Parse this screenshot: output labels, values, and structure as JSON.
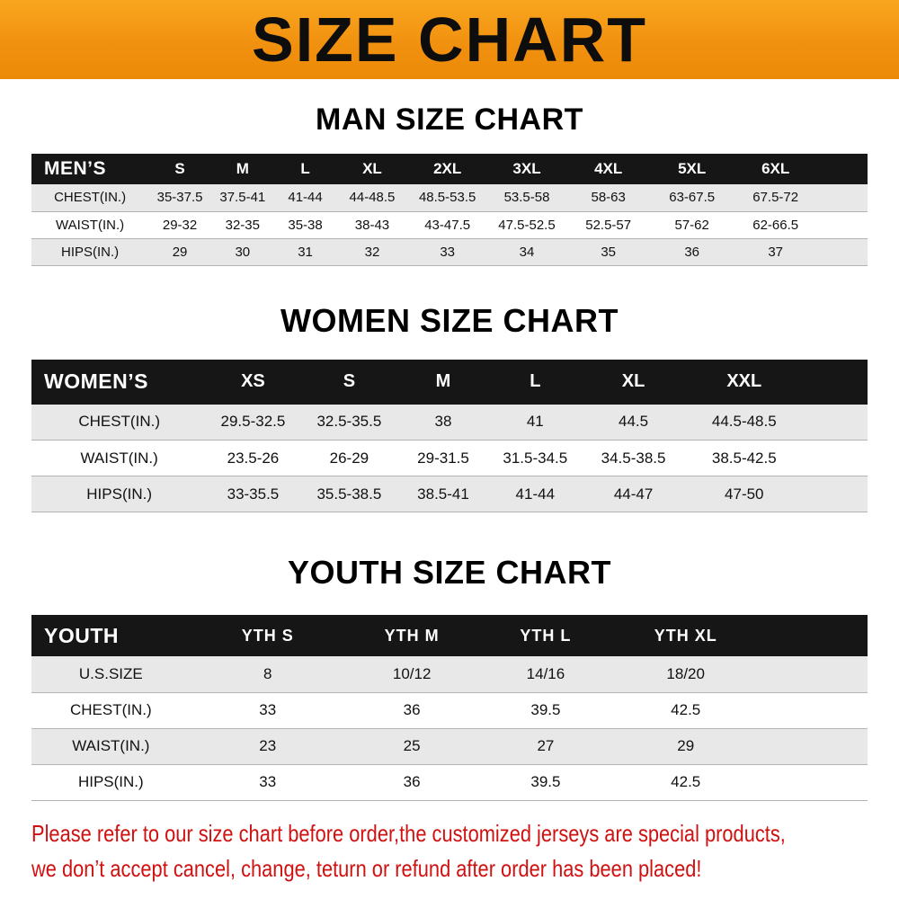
{
  "banner": {
    "title": "SIZE CHART"
  },
  "chart_data": [
    {
      "type": "table",
      "title": "MAN SIZE CHART",
      "corner_label": "MEN’S",
      "columns": [
        "S",
        "M",
        "L",
        "XL",
        "2XL",
        "3XL",
        "4XL",
        "5XL",
        "6XL"
      ],
      "rows": [
        {
          "label": "CHEST(IN.)",
          "values": [
            "35-37.5",
            "37.5-41",
            "41-44",
            "44-48.5",
            "48.5-53.5",
            "53.5-58",
            "58-63",
            "63-67.5",
            "67.5-72"
          ]
        },
        {
          "label": "WAIST(IN.)",
          "values": [
            "29-32",
            "32-35",
            "35-38",
            "38-43",
            "43-47.5",
            "47.5-52.5",
            "52.5-57",
            "57-62",
            "62-66.5"
          ]
        },
        {
          "label": "HIPS(IN.)",
          "values": [
            "29",
            "30",
            "31",
            "32",
            "33",
            "34",
            "35",
            "36",
            "37"
          ]
        }
      ]
    },
    {
      "type": "table",
      "title": "WOMEN SIZE CHART",
      "corner_label": "WOMEN’S",
      "columns": [
        "XS",
        "S",
        "M",
        "L",
        "XL",
        "XXL"
      ],
      "rows": [
        {
          "label": "CHEST(IN.)",
          "values": [
            "29.5-32.5",
            "32.5-35.5",
            "38",
            "41",
            "44.5",
            "44.5-48.5"
          ]
        },
        {
          "label": "WAIST(IN.)",
          "values": [
            "23.5-26",
            "26-29",
            "29-31.5",
            "31.5-34.5",
            "34.5-38.5",
            "38.5-42.5"
          ]
        },
        {
          "label": "HIPS(IN.)",
          "values": [
            "33-35.5",
            "35.5-38.5",
            "38.5-41",
            "41-44",
            "44-47",
            "47-50"
          ]
        }
      ]
    },
    {
      "type": "table",
      "title": "YOUTH SIZE CHART",
      "corner_label": "YOUTH",
      "columns": [
        "YTH S",
        "YTH M",
        "YTH L",
        "YTH XL"
      ],
      "rows": [
        {
          "label": "U.S.SIZE",
          "values": [
            "8",
            "10/12",
            "14/16",
            "18/20"
          ]
        },
        {
          "label": "CHEST(IN.)",
          "values": [
            "33",
            "36",
            "39.5",
            "42.5"
          ]
        },
        {
          "label": "WAIST(IN.)",
          "values": [
            "23",
            "25",
            "27",
            "29"
          ]
        },
        {
          "label": "HIPS(IN.)",
          "values": [
            "33",
            "36",
            "39.5",
            "42.5"
          ]
        }
      ]
    }
  ],
  "footer": {
    "line1": "Please refer to our size chart before order,the customized jerseys are special products,",
    "line2": "we don’t accept cancel, change, teturn or refund after order has been placed!"
  },
  "colors": {
    "banner_orange": "#f19110",
    "table_header_black": "#161616",
    "row_stripe_gray": "#e8e8e8",
    "notice_red": "#d01111"
  }
}
